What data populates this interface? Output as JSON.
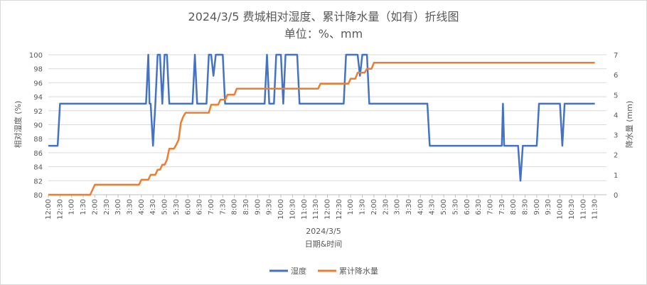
{
  "chart_data": {
    "type": "line",
    "title": "2024/3/5 费城相对湿度、累计降水量（如有）折线图",
    "subtitle": "单位：%、mm",
    "xlabel": "日期&时间",
    "date_label": "2024/3/5",
    "ylabel_left": "相对湿度 (%)",
    "ylabel_right": "降水量 (mm)",
    "ylim_left": [
      80,
      100
    ],
    "ylim_right": [
      0,
      7
    ],
    "yticks_left": [
      "80",
      "82",
      "84",
      "86",
      "88",
      "90",
      "92",
      "94",
      "96",
      "98",
      "100"
    ],
    "yticks_right": [
      "0",
      "1",
      "2",
      "3",
      "4",
      "5",
      "6",
      "7"
    ],
    "xlim_hours": [
      12,
      36
    ],
    "xticks": [
      "12:00",
      "12:30",
      "1:00",
      "1:30",
      "2:00",
      "2:30",
      "3:00",
      "3:30",
      "4:00",
      "4:30",
      "5:00",
      "5:30",
      "6:00",
      "6:30",
      "7:00",
      "7:30",
      "8:00",
      "8:30",
      "9:00",
      "9:30",
      "10:00",
      "10:30",
      "11:00",
      "11:30",
      "12:00",
      "12:30",
      "1:00",
      "1:30",
      "2:00",
      "2:30",
      "3:00",
      "3:30",
      "4:00",
      "4:30",
      "5:00",
      "5:30",
      "6:00",
      "6:30",
      "7:00",
      "7:30",
      "8:00",
      "8:30",
      "9:00",
      "9:30",
      "10:00",
      "10:30",
      "11:00",
      "11:30"
    ],
    "legend_position": "bottom",
    "series": [
      {
        "name": "湿度",
        "color": "#4472c4",
        "axis": "left",
        "points": [
          [
            12.0,
            87
          ],
          [
            12.4,
            87
          ],
          [
            12.5,
            93
          ],
          [
            16.2,
            93
          ],
          [
            16.3,
            100
          ],
          [
            16.35,
            93
          ],
          [
            16.4,
            93
          ],
          [
            16.5,
            87
          ],
          [
            16.6,
            93
          ],
          [
            16.7,
            100
          ],
          [
            16.8,
            100
          ],
          [
            16.9,
            93
          ],
          [
            17.0,
            100
          ],
          [
            17.1,
            100
          ],
          [
            17.2,
            93
          ],
          [
            18.2,
            93
          ],
          [
            18.3,
            100
          ],
          [
            18.4,
            93
          ],
          [
            18.8,
            93
          ],
          [
            18.9,
            100
          ],
          [
            19.0,
            100
          ],
          [
            19.1,
            97
          ],
          [
            19.2,
            100
          ],
          [
            19.5,
            100
          ],
          [
            19.6,
            93
          ],
          [
            21.3,
            93
          ],
          [
            21.4,
            100
          ],
          [
            21.5,
            93
          ],
          [
            21.7,
            93
          ],
          [
            21.8,
            100
          ],
          [
            22.0,
            100
          ],
          [
            22.1,
            93
          ],
          [
            22.2,
            100
          ],
          [
            22.7,
            100
          ],
          [
            22.8,
            93
          ],
          [
            24.7,
            93
          ],
          [
            24.8,
            100
          ],
          [
            25.3,
            100
          ],
          [
            25.4,
            97
          ],
          [
            25.5,
            100
          ],
          [
            25.7,
            100
          ],
          [
            25.8,
            93
          ],
          [
            28.3,
            93
          ],
          [
            28.4,
            87
          ],
          [
            31.5,
            87
          ],
          [
            31.55,
            93
          ],
          [
            31.6,
            87
          ],
          [
            32.2,
            87
          ],
          [
            32.3,
            82
          ],
          [
            32.4,
            87
          ],
          [
            33.0,
            87
          ],
          [
            33.1,
            93
          ],
          [
            34.0,
            93
          ],
          [
            34.1,
            87
          ],
          [
            34.2,
            93
          ],
          [
            35.5,
            93
          ]
        ]
      },
      {
        "name": "累计降水量",
        "color": "#ed7d31",
        "axis": "right",
        "points": [
          [
            12.0,
            0
          ],
          [
            13.8,
            0
          ],
          [
            13.9,
            0.25
          ],
          [
            14.0,
            0.5
          ],
          [
            15.9,
            0.5
          ],
          [
            16.0,
            0.75
          ],
          [
            16.3,
            0.75
          ],
          [
            16.4,
            1.0
          ],
          [
            16.6,
            1.0
          ],
          [
            16.7,
            1.25
          ],
          [
            16.8,
            1.25
          ],
          [
            16.9,
            1.5
          ],
          [
            17.0,
            1.5
          ],
          [
            17.1,
            1.75
          ],
          [
            17.2,
            2.3
          ],
          [
            17.4,
            2.3
          ],
          [
            17.5,
            2.5
          ],
          [
            17.6,
            2.75
          ],
          [
            17.7,
            3.6
          ],
          [
            17.8,
            3.9
          ],
          [
            17.9,
            4.1
          ],
          [
            18.9,
            4.1
          ],
          [
            19.0,
            4.5
          ],
          [
            19.3,
            4.5
          ],
          [
            19.4,
            4.75
          ],
          [
            19.6,
            4.75
          ],
          [
            19.7,
            5.0
          ],
          [
            20.0,
            5.0
          ],
          [
            20.1,
            5.3
          ],
          [
            23.6,
            5.3
          ],
          [
            23.7,
            5.55
          ],
          [
            24.9,
            5.55
          ],
          [
            25.0,
            5.8
          ],
          [
            25.2,
            5.8
          ],
          [
            25.3,
            6.1
          ],
          [
            25.6,
            6.1
          ],
          [
            25.7,
            6.3
          ],
          [
            25.9,
            6.3
          ],
          [
            26.0,
            6.6
          ],
          [
            35.5,
            6.6
          ]
        ]
      }
    ]
  }
}
